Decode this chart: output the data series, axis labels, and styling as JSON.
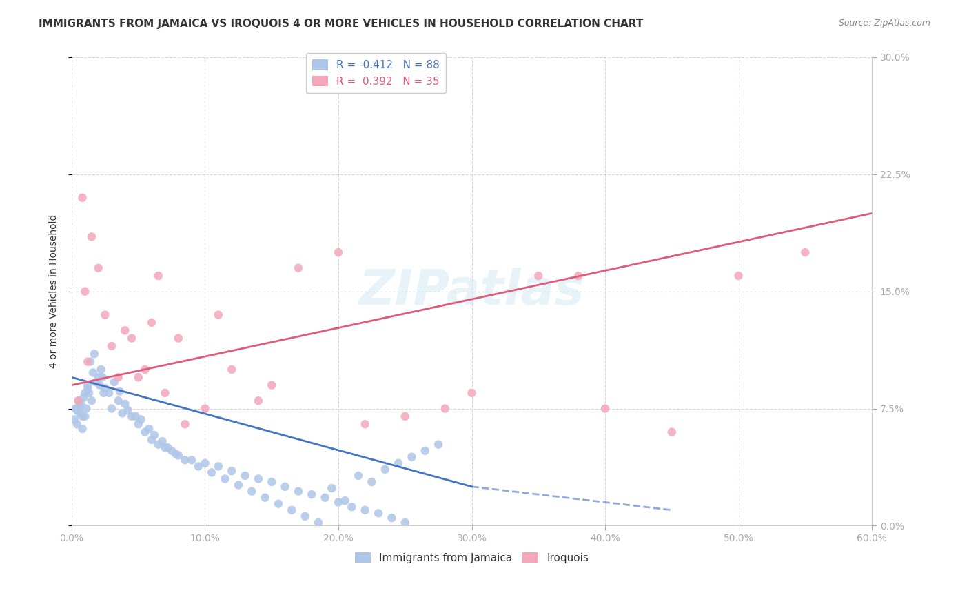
{
  "title": "IMMIGRANTS FROM JAMAICA VS IROQUOIS 4 OR MORE VEHICLES IN HOUSEHOLD CORRELATION CHART",
  "source": "Source: ZipAtlas.com",
  "xlabel_bottom": "",
  "ylabel": "4 or more Vehicles in Household",
  "x_tick_labels": [
    "0.0%",
    "10.0%",
    "20.0%",
    "30.0%",
    "40.0%",
    "50.0%",
    "60.0%"
  ],
  "x_tick_values": [
    0.0,
    10.0,
    20.0,
    30.0,
    40.0,
    50.0,
    60.0
  ],
  "y_tick_labels": [
    "0.0%",
    "7.5%",
    "15.0%",
    "22.5%",
    "30.0%"
  ],
  "y_tick_values": [
    0.0,
    7.5,
    15.0,
    22.5,
    30.0
  ],
  "xlim": [
    0.0,
    60.0
  ],
  "ylim": [
    0.0,
    30.0
  ],
  "blue_R": -0.412,
  "blue_N": 88,
  "pink_R": 0.392,
  "pink_N": 35,
  "blue_color": "#aec6e8",
  "pink_color": "#f4a7b9",
  "blue_line_color": "#4472c4",
  "pink_line_color": "#e05a7a",
  "legend_label_blue": "Immigrants from Jamaica",
  "legend_label_pink": "Iroquois",
  "watermark": "ZIPatlas",
  "title_fontsize": 11,
  "axis_label_color": "#4472c4",
  "blue_scatter_x": [
    0.3,
    0.5,
    0.4,
    0.8,
    1.0,
    0.6,
    1.2,
    1.5,
    0.7,
    0.9,
    1.1,
    1.3,
    2.0,
    2.5,
    1.8,
    2.2,
    1.6,
    2.8,
    3.0,
    3.5,
    2.4,
    3.8,
    4.0,
    4.5,
    5.0,
    5.5,
    6.0,
    6.5,
    7.0,
    7.5,
    8.0,
    9.0,
    10.0,
    11.0,
    12.0,
    13.0,
    14.0,
    15.0,
    16.0,
    17.0,
    18.0,
    19.0,
    20.0,
    21.0,
    22.0,
    23.0,
    24.0,
    25.0,
    2.1,
    2.3,
    1.4,
    1.7,
    0.2,
    0.4,
    0.6,
    0.8,
    1.0,
    1.2,
    3.2,
    3.6,
    4.2,
    4.8,
    5.2,
    5.8,
    6.2,
    6.8,
    7.2,
    7.8,
    8.5,
    9.5,
    10.5,
    11.5,
    12.5,
    13.5,
    14.5,
    15.5,
    16.5,
    17.5,
    18.5,
    19.5,
    20.5,
    21.5,
    22.5,
    23.5,
    24.5,
    25.5,
    26.5,
    27.5
  ],
  "blue_scatter_y": [
    7.5,
    8.0,
    6.5,
    7.0,
    8.5,
    7.2,
    9.0,
    8.0,
    7.8,
    8.2,
    7.5,
    8.5,
    9.5,
    8.8,
    9.2,
    10.0,
    9.8,
    8.5,
    7.5,
    8.0,
    8.5,
    7.2,
    7.8,
    7.0,
    6.5,
    6.0,
    5.5,
    5.2,
    5.0,
    4.8,
    4.5,
    4.2,
    4.0,
    3.8,
    3.5,
    3.2,
    3.0,
    2.8,
    2.5,
    2.2,
    2.0,
    1.8,
    1.5,
    1.2,
    1.0,
    0.8,
    0.5,
    0.2,
    9.0,
    9.5,
    10.5,
    11.0,
    6.8,
    7.4,
    7.6,
    6.2,
    7.0,
    8.8,
    9.2,
    8.6,
    7.4,
    7.0,
    6.8,
    6.2,
    5.8,
    5.4,
    5.0,
    4.6,
    4.2,
    3.8,
    3.4,
    3.0,
    2.6,
    2.2,
    1.8,
    1.4,
    1.0,
    0.6,
    0.2,
    2.4,
    1.6,
    3.2,
    2.8,
    3.6,
    4.0,
    4.4,
    4.8,
    5.2
  ],
  "pink_scatter_x": [
    0.5,
    1.0,
    0.8,
    1.5,
    2.0,
    2.5,
    1.2,
    3.0,
    4.0,
    5.0,
    6.0,
    7.0,
    8.0,
    10.0,
    12.0,
    14.0,
    17.0,
    20.0,
    25.0,
    30.0,
    35.0,
    40.0,
    45.0,
    50.0,
    55.0,
    3.5,
    4.5,
    5.5,
    6.5,
    8.5,
    11.0,
    15.0,
    22.0,
    28.0,
    38.0
  ],
  "pink_scatter_y": [
    8.0,
    15.0,
    21.0,
    18.5,
    16.5,
    13.5,
    10.5,
    11.5,
    12.5,
    9.5,
    13.0,
    8.5,
    12.0,
    7.5,
    10.0,
    8.0,
    16.5,
    17.5,
    7.0,
    8.5,
    16.0,
    7.5,
    6.0,
    16.0,
    17.5,
    9.5,
    12.0,
    10.0,
    16.0,
    6.5,
    13.5,
    9.0,
    6.5,
    7.5,
    16.0
  ],
  "blue_trendline_x": [
    0.0,
    30.0
  ],
  "blue_trendline_y_start": 9.5,
  "blue_trendline_y_end": 2.5,
  "pink_trendline_x": [
    0.0,
    60.0
  ],
  "pink_trendline_y_start": 9.0,
  "pink_trendline_y_end": 20.0
}
